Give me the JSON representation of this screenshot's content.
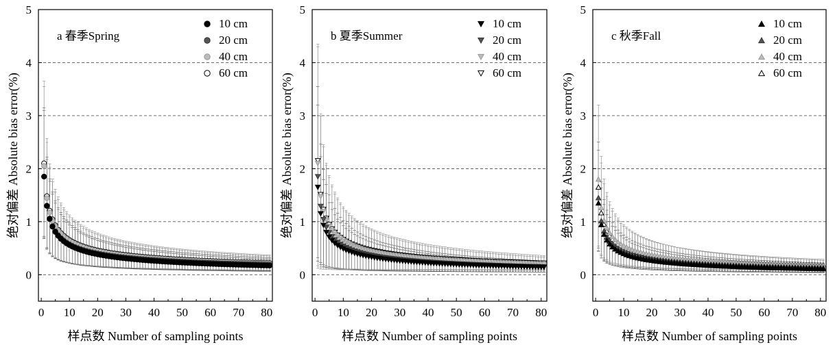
{
  "chart_data": [
    {
      "type": "scatter",
      "title": "a 春季Spring",
      "xlabel": "样点数 Number of sampling points",
      "ylabel": "绝对偏差 Absolute bias error(%)",
      "xlim": [
        -1,
        82
      ],
      "ylim": [
        -0.5,
        5
      ],
      "xticks": [
        "0",
        "10",
        "20",
        "30",
        "40",
        "50",
        "60",
        "70",
        "80"
      ],
      "yticks": [
        "0",
        "1",
        "2",
        "3",
        "4",
        "5"
      ],
      "grid": "dashed horizontal at 0, 1, 2, 3, 4",
      "legend": "top-right",
      "marker_shape": "circle",
      "series": [
        {
          "name": "10 cm",
          "fill": "#000000",
          "stroke": "#000000",
          "start": 1.85,
          "end": 0.17,
          "err_start": 1.25,
          "err_end": 0.12
        },
        {
          "name": "20 cm",
          "fill": "#555555",
          "stroke": "#333333",
          "start": 1.85,
          "end": 0.19,
          "err_start": 1.3,
          "err_end": 0.13
        },
        {
          "name": "40 cm",
          "fill": "#bbbbbb",
          "stroke": "#999999",
          "start": 2.05,
          "end": 0.21,
          "err_start": 1.5,
          "err_end": 0.14
        },
        {
          "name": "60 cm",
          "fill": "#ffffff",
          "stroke": "#000000",
          "start": 2.1,
          "end": 0.22,
          "err_start": 1.55,
          "err_end": 0.15
        }
      ]
    },
    {
      "type": "scatter",
      "title": "b 夏季Summer",
      "xlabel": "样点数 Number of sampling points",
      "ylabel": "绝对偏差 Absolute bias error(%)",
      "xlim": [
        -1,
        82
      ],
      "ylim": [
        -0.5,
        5
      ],
      "xticks": [
        "0",
        "10",
        "20",
        "30",
        "40",
        "50",
        "60",
        "70",
        "80"
      ],
      "yticks": [
        "0",
        "1",
        "2",
        "3",
        "4",
        "5"
      ],
      "grid": "dashed horizontal at 0, 1, 2, 3, 4",
      "legend": "top-right",
      "marker_shape": "triangle-down",
      "series": [
        {
          "name": "10 cm",
          "fill": "#000000",
          "stroke": "#000000",
          "start": 1.65,
          "end": 0.14,
          "err_start": 1.55,
          "err_end": 0.1
        },
        {
          "name": "20 cm",
          "fill": "#555555",
          "stroke": "#333333",
          "start": 1.85,
          "end": 0.15,
          "err_start": 1.7,
          "err_end": 0.11
        },
        {
          "name": "40 cm",
          "fill": "#bbbbbb",
          "stroke": "#999999",
          "start": 2.1,
          "end": 0.2,
          "err_start": 2.2,
          "err_end": 0.13
        },
        {
          "name": "60 cm",
          "fill": "#ffffff",
          "stroke": "#000000",
          "start": 2.15,
          "end": 0.22,
          "err_start": 2.2,
          "err_end": 0.14
        }
      ]
    },
    {
      "type": "scatter",
      "title": "c 秋季Fall",
      "xlabel": "样点数 Number of sampling points",
      "ylabel": "绝对偏差 Absolute bias error(%)",
      "xlim": [
        -1,
        82
      ],
      "ylim": [
        -0.5,
        5
      ],
      "xticks": [
        "0",
        "10",
        "20",
        "30",
        "40",
        "50",
        "60",
        "70",
        "80"
      ],
      "yticks": [
        "0",
        "1",
        "2",
        "3",
        "4",
        "5"
      ],
      "grid": "dashed horizontal at 0, 1, 2, 3, 4",
      "legend": "top-right",
      "marker_shape": "triangle-up",
      "series": [
        {
          "name": "10 cm",
          "fill": "#000000",
          "stroke": "#000000",
          "start": 1.35,
          "end": 0.11,
          "err_start": 1.0,
          "err_end": 0.08
        },
        {
          "name": "20 cm",
          "fill": "#555555",
          "stroke": "#333333",
          "start": 1.45,
          "end": 0.13,
          "err_start": 1.05,
          "err_end": 0.09
        },
        {
          "name": "40 cm",
          "fill": "#bbbbbb",
          "stroke": "#999999",
          "start": 1.8,
          "end": 0.17,
          "err_start": 1.4,
          "err_end": 0.1
        },
        {
          "name": "60 cm",
          "fill": "#ffffff",
          "stroke": "#000000",
          "start": 1.65,
          "end": 0.18,
          "err_start": 1.35,
          "err_end": 0.11
        }
      ]
    }
  ]
}
